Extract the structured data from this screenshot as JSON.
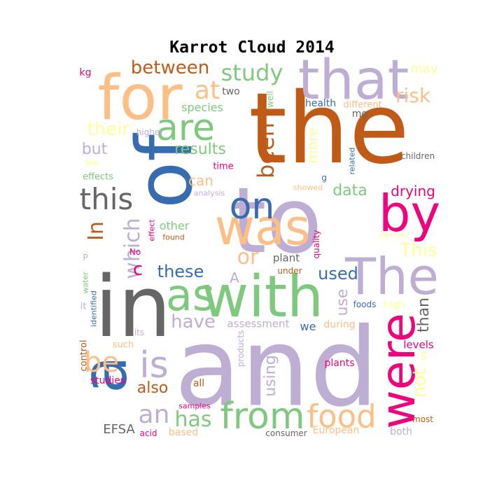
{
  "title": "Karrot Cloud 2014",
  "palette": {
    "orange": "#fdbf86",
    "brown": "#bf5b17",
    "blue": "#386cb0",
    "green": "#7fc97f",
    "lavender": "#beaed4",
    "gray": "#666666",
    "pink": "#f0027f",
    "yellow": "#ffff99"
  },
  "words": [
    {
      "text": "the",
      "color": "#bf5b17"
    },
    {
      "text": "and",
      "color": "#beaed4"
    },
    {
      "text": "to",
      "color": "#beaed4"
    },
    {
      "text": "of",
      "color": "#386cb0"
    },
    {
      "text": "in",
      "color": "#666666"
    },
    {
      "text": "for",
      "color": "#fdbf86"
    },
    {
      "text": "that",
      "color": "#beaed4"
    },
    {
      "text": "with",
      "color": "#7fc97f"
    },
    {
      "text": "was",
      "color": "#fdbf86"
    },
    {
      "text": "a",
      "color": "#386cb0"
    },
    {
      "text": "The",
      "color": "#beaed4"
    },
    {
      "text": "by",
      "color": "#f0027f"
    },
    {
      "text": "were",
      "color": "#f0027f"
    },
    {
      "text": "as",
      "color": "#7fc97f"
    },
    {
      "text": "are",
      "color": "#7fc97f"
    },
    {
      "text": "on",
      "color": "#386cb0"
    },
    {
      "text": "is",
      "color": "#beaed4"
    },
    {
      "text": "from",
      "color": "#7fc97f"
    },
    {
      "text": "food",
      "color": "#fdbf86"
    },
    {
      "text": "this",
      "color": "#666666"
    },
    {
      "text": "be",
      "color": "#fdbf86"
    },
    {
      "text": "at",
      "color": "#fdbf86"
    },
    {
      "text": "been",
      "color": "#bf5b17"
    },
    {
      "text": "In",
      "color": "#bf5b17"
    },
    {
      "text": "which",
      "color": "#beaed4"
    },
    {
      "text": "an",
      "color": "#beaed4"
    },
    {
      "text": "has",
      "color": "#7fc97f"
    },
    {
      "text": "study",
      "color": "#7fc97f"
    },
    {
      "text": "between",
      "color": "#bf5b17"
    },
    {
      "text": "their",
      "color": "#ffff99"
    },
    {
      "text": "or",
      "color": "#fdbf86"
    },
    {
      "text": "risk",
      "color": "#fdbf86"
    },
    {
      "text": "have",
      "color": "#beaed4"
    },
    {
      "text": "these",
      "color": "#386cb0"
    },
    {
      "text": "results",
      "color": "#7fc97f"
    },
    {
      "text": "data",
      "color": "#7fc97f"
    },
    {
      "text": "used",
      "color": "#386cb0"
    },
    {
      "text": "not",
      "color": "#ffff99"
    },
    {
      "text": "also",
      "color": "#bf5b17"
    },
    {
      "text": "This",
      "color": "#ffff99"
    },
    {
      "text": "drying",
      "color": "#f0027f"
    },
    {
      "text": "using",
      "color": "#beaed4"
    },
    {
      "text": "than",
      "color": "#666666"
    },
    {
      "text": "more",
      "color": "#ffff99"
    },
    {
      "text": "may",
      "color": "#ffff99"
    },
    {
      "text": "but",
      "color": "#beaed4"
    },
    {
      "text": "c",
      "color": "#f0027f"
    },
    {
      "text": "other",
      "color": "#7fc97f"
    },
    {
      "text": "can",
      "color": "#fdbf86"
    },
    {
      "text": "use",
      "color": "#beaed4"
    },
    {
      "text": "species",
      "color": "#7fc97f"
    },
    {
      "text": "A",
      "color": "#beaed4"
    },
    {
      "text": "EFSA",
      "color": "#666666"
    },
    {
      "text": "assessment",
      "color": "#beaed4"
    },
    {
      "text": "we",
      "color": "#386cb0"
    },
    {
      "text": "high",
      "color": "#ffff99"
    },
    {
      "text": "s",
      "color": "#ffff99"
    },
    {
      "text": "plant",
      "color": "#666666"
    },
    {
      "text": "plants",
      "color": "#f0027f"
    },
    {
      "text": "levels",
      "color": "#f0027f"
    },
    {
      "text": "during",
      "color": "#fdbf86"
    },
    {
      "text": "products",
      "color": "#beaed4"
    },
    {
      "text": "European",
      "color": "#fdbf86"
    },
    {
      "text": "studies",
      "color": "#f0027f"
    },
    {
      "text": "two",
      "color": "#666666"
    },
    {
      "text": "health",
      "color": "#386cb0"
    },
    {
      "text": "mg",
      "color": "#666666"
    },
    {
      "text": "different",
      "color": "#fdbf86"
    },
    {
      "text": "time",
      "color": "#f0027f"
    },
    {
      "text": "effects",
      "color": "#7fc97f"
    },
    {
      "text": "quality",
      "color": "#f0027f"
    },
    {
      "text": "children",
      "color": "#666666"
    },
    {
      "text": "control",
      "color": "#bf5b17"
    },
    {
      "text": "such",
      "color": "#fdbf86"
    },
    {
      "text": "based",
      "color": "#fdbf86"
    },
    {
      "text": "consumer",
      "color": "#666666"
    },
    {
      "text": "both",
      "color": "#beaed4"
    },
    {
      "text": "most",
      "color": "#bf5b17"
    },
    {
      "text": "samples",
      "color": "#f0027f"
    },
    {
      "text": "acid",
      "color": "#f0027f"
    },
    {
      "text": "all",
      "color": "#bf5b17"
    },
    {
      "text": "its",
      "color": "#beaed4"
    },
    {
      "text": "identified",
      "color": "#386cb0"
    },
    {
      "text": "foods",
      "color": "#386cb0"
    },
    {
      "text": "under",
      "color": "#bf5b17"
    },
    {
      "text": "found",
      "color": "#bf5b17"
    },
    {
      "text": "effect",
      "color": "#f0027f"
    },
    {
      "text": "No",
      "color": "#f0027f"
    },
    {
      "text": "P",
      "color": "#beaed4"
    },
    {
      "text": "water",
      "color": "#7fc97f"
    },
    {
      "text": "it",
      "color": "#beaed4"
    },
    {
      "text": "kg",
      "color": "#f0027f"
    },
    {
      "text": "well",
      "color": "#7fc97f"
    },
    {
      "text": "higher",
      "color": "#beaed4"
    },
    {
      "text": "we",
      "color": "#ffff99"
    },
    {
      "text": "analysis",
      "color": "#beaed4"
    },
    {
      "text": "g",
      "color": "#386cb0"
    },
    {
      "text": "showed",
      "color": "#fdbf86"
    },
    {
      "text": "related",
      "color": "#386cb0"
    },
    {
      "text": "derived",
      "color": "#ffff99"
    }
  ]
}
